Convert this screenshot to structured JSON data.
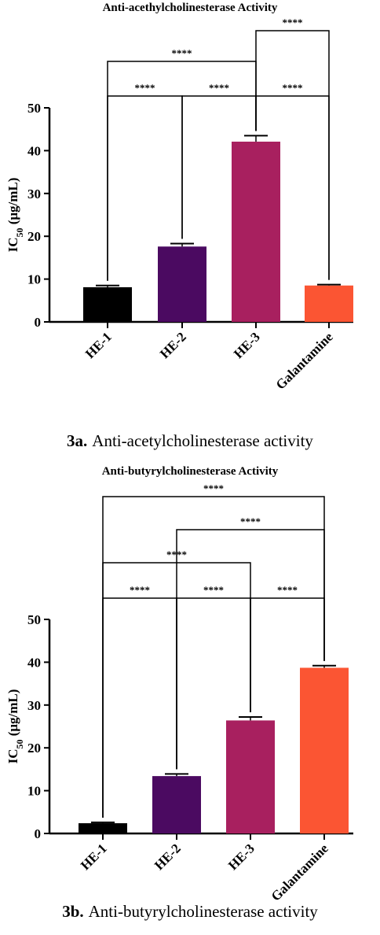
{
  "charts": [
    {
      "title": "Anti-acethylcholinesterase  Activity",
      "caption_label": "3a.",
      "caption_text": "Anti-acetylcholinesterase activity",
      "chart_data": {
        "type": "bar",
        "title": "Anti-acethylcholinesterase  Activity",
        "categories": [
          "HE-1",
          "HE-2",
          "HE-3",
          "Galantamine"
        ],
        "values": [
          8.1,
          17.6,
          42.1,
          8.5
        ],
        "errors": [
          0.4,
          0.7,
          1.4,
          0.2
        ],
        "colors": [
          "#000000",
          "#4b0a61",
          "#a8205f",
          "#fb5533"
        ],
        "ylabel_main": "IC",
        "ylabel_sub": "50",
        "ylabel_unit": " (μg/mL)",
        "ylim": [
          0,
          50
        ],
        "yticks": [
          0,
          10,
          20,
          30,
          40,
          50
        ],
        "grid": false,
        "comparisons": [
          {
            "from": 0,
            "to": 1,
            "label": "****"
          },
          {
            "from": 1,
            "to": 2,
            "label": "****"
          },
          {
            "from": 2,
            "to": 3,
            "label": "****"
          },
          {
            "from": 0,
            "to": 2,
            "label": "****"
          },
          {
            "from": 2,
            "to": 3,
            "label": "****"
          }
        ]
      }
    },
    {
      "title": "Anti-butyrylcholinesterase  Activity",
      "caption_label": "3b.",
      "caption_text": "Anti-butyrylcholinesterase activity",
      "chart_data": {
        "type": "bar",
        "title": "Anti-butyrylcholinesterase  Activity",
        "categories": [
          "HE-1",
          "HE-2",
          "HE-3",
          "Galantamine"
        ],
        "values": [
          2.4,
          13.4,
          26.4,
          38.7
        ],
        "errors": [
          0.2,
          0.5,
          0.8,
          0.5
        ],
        "colors": [
          "#000000",
          "#4b0a61",
          "#a8205f",
          "#fb5533"
        ],
        "ylabel_main": "IC",
        "ylabel_sub": "50",
        "ylabel_unit": " (μg/mL)",
        "ylim": [
          0,
          50
        ],
        "yticks": [
          0,
          10,
          20,
          30,
          40,
          50
        ],
        "grid": false,
        "comparisons": [
          {
            "from": 0,
            "to": 1,
            "label": "****"
          },
          {
            "from": 1,
            "to": 2,
            "label": "****"
          },
          {
            "from": 2,
            "to": 3,
            "label": "****"
          },
          {
            "from": 0,
            "to": 2,
            "label": "****"
          },
          {
            "from": 1,
            "to": 3,
            "label": "****"
          },
          {
            "from": 0,
            "to": 3,
            "label": "****"
          }
        ]
      }
    }
  ]
}
